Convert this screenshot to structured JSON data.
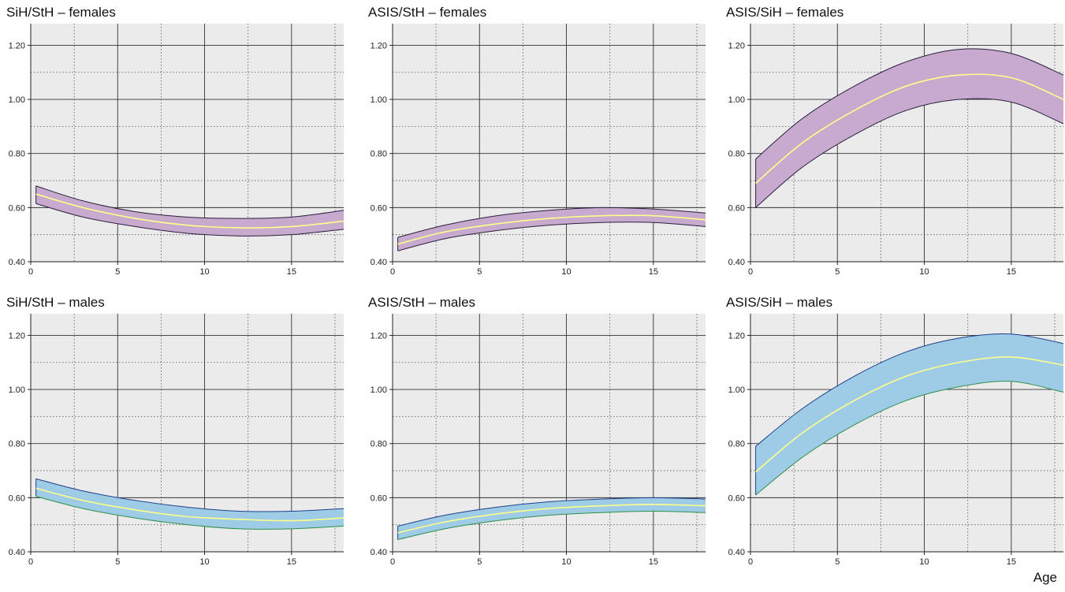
{
  "x_axis_label": "Age",
  "colors": {
    "plot_background": "#ebebeb",
    "female_band": "#c9aacf",
    "male_band": "#9ecbe6",
    "female_edge": "#2a1f3d",
    "male_edge_top": "#1f3f8a",
    "male_edge_bottom": "#2f8f4a",
    "median_line": "#ffff8a"
  },
  "chart_data": [
    {
      "type": "area",
      "title": "SiH/StH – females",
      "group": "female",
      "xlim": [
        0,
        18
      ],
      "ylim": [
        0.4,
        1.28
      ],
      "xticks": [
        0,
        5,
        10,
        15
      ],
      "yticks": [
        0.4,
        0.6,
        0.8,
        1.0,
        1.2
      ],
      "ytick_labels": [
        "0.40",
        "0.60",
        "0.80",
        "1.00",
        "1.20"
      ],
      "grid": true,
      "x": [
        0.3,
        3,
        6,
        9,
        12,
        15,
        18
      ],
      "series": [
        {
          "values": [
            0.68,
            0.625,
            0.585,
            0.565,
            0.56,
            0.565,
            0.59
          ]
        },
        {
          "values": [
            0.65,
            0.6,
            0.56,
            0.535,
            0.525,
            0.53,
            0.55
          ]
        },
        {
          "values": [
            0.615,
            0.565,
            0.53,
            0.505,
            0.495,
            0.5,
            0.52
          ]
        }
      ]
    },
    {
      "type": "area",
      "title": "ASIS/StH – females",
      "group": "female",
      "xlim": [
        0,
        18
      ],
      "ylim": [
        0.4,
        1.28
      ],
      "xticks": [
        0,
        5,
        10,
        15
      ],
      "yticks": [
        0.4,
        0.6,
        0.8,
        1.0,
        1.2
      ],
      "ytick_labels": [
        "0.40",
        "0.60",
        "0.80",
        "1.00",
        "1.20"
      ],
      "grid": true,
      "x": [
        0.3,
        3,
        6,
        9,
        12,
        15,
        18
      ],
      "series": [
        {
          "values": [
            0.49,
            0.535,
            0.57,
            0.59,
            0.6,
            0.595,
            0.58
          ]
        },
        {
          "values": [
            0.465,
            0.51,
            0.54,
            0.56,
            0.57,
            0.57,
            0.555
          ]
        },
        {
          "values": [
            0.44,
            0.485,
            0.515,
            0.535,
            0.545,
            0.545,
            0.53
          ]
        }
      ]
    },
    {
      "type": "area",
      "title": "ASIS/SiH – females",
      "group": "female",
      "xlim": [
        0,
        18
      ],
      "ylim": [
        0.4,
        1.28
      ],
      "xticks": [
        0,
        5,
        10,
        15
      ],
      "yticks": [
        0.4,
        0.6,
        0.8,
        1.0,
        1.2
      ],
      "ytick_labels": [
        "0.40",
        "0.60",
        "0.80",
        "1.00",
        "1.20"
      ],
      "grid": true,
      "x": [
        0.3,
        3,
        6,
        9,
        12,
        15,
        18
      ],
      "series": [
        {
          "values": [
            0.78,
            0.93,
            1.05,
            1.14,
            1.185,
            1.17,
            1.09
          ]
        },
        {
          "values": [
            0.69,
            0.84,
            0.96,
            1.05,
            1.09,
            1.08,
            1.0
          ]
        },
        {
          "values": [
            0.6,
            0.75,
            0.87,
            0.96,
            1.0,
            0.99,
            0.91
          ]
        }
      ]
    },
    {
      "type": "area",
      "title": "SiH/StH – males",
      "group": "male",
      "xlim": [
        0,
        18
      ],
      "ylim": [
        0.4,
        1.28
      ],
      "xticks": [
        0,
        5,
        10,
        15
      ],
      "yticks": [
        0.4,
        0.6,
        0.8,
        1.0,
        1.2
      ],
      "ytick_labels": [
        "0.40",
        "0.60",
        "0.80",
        "1.00",
        "1.20"
      ],
      "grid": true,
      "x": [
        0.3,
        3,
        6,
        9,
        12,
        15,
        18
      ],
      "series": [
        {
          "values": [
            0.67,
            0.625,
            0.59,
            0.565,
            0.55,
            0.55,
            0.56
          ]
        },
        {
          "values": [
            0.635,
            0.59,
            0.555,
            0.53,
            0.52,
            0.515,
            0.525
          ]
        },
        {
          "values": [
            0.605,
            0.56,
            0.525,
            0.5,
            0.485,
            0.485,
            0.495
          ]
        }
      ]
    },
    {
      "type": "area",
      "title": "ASIS/StH – males",
      "group": "male",
      "xlim": [
        0,
        18
      ],
      "ylim": [
        0.4,
        1.28
      ],
      "xticks": [
        0,
        5,
        10,
        15
      ],
      "yticks": [
        0.4,
        0.6,
        0.8,
        1.0,
        1.2
      ],
      "ytick_labels": [
        "0.40",
        "0.60",
        "0.80",
        "1.00",
        "1.20"
      ],
      "grid": true,
      "x": [
        0.3,
        3,
        6,
        9,
        12,
        15,
        18
      ],
      "series": [
        {
          "values": [
            0.495,
            0.535,
            0.565,
            0.585,
            0.595,
            0.6,
            0.595
          ]
        },
        {
          "values": [
            0.47,
            0.51,
            0.54,
            0.56,
            0.57,
            0.575,
            0.57
          ]
        },
        {
          "values": [
            0.445,
            0.485,
            0.515,
            0.535,
            0.545,
            0.55,
            0.545
          ]
        }
      ]
    },
    {
      "type": "area",
      "title": "ASIS/SiH – males",
      "group": "male",
      "xlim": [
        0,
        18
      ],
      "ylim": [
        0.4,
        1.28
      ],
      "xticks": [
        0,
        5,
        10,
        15
      ],
      "yticks": [
        0.4,
        0.6,
        0.8,
        1.0,
        1.2
      ],
      "ytick_labels": [
        "0.40",
        "0.60",
        "0.80",
        "1.00",
        "1.20"
      ],
      "grid": true,
      "x": [
        0.3,
        3,
        6,
        9,
        12,
        15,
        18
      ],
      "series": [
        {
          "values": [
            0.79,
            0.93,
            1.05,
            1.14,
            1.19,
            1.205,
            1.17
          ]
        },
        {
          "values": [
            0.695,
            0.84,
            0.96,
            1.05,
            1.1,
            1.12,
            1.09
          ]
        },
        {
          "values": [
            0.61,
            0.75,
            0.87,
            0.96,
            1.01,
            1.03,
            0.99
          ]
        }
      ]
    }
  ]
}
